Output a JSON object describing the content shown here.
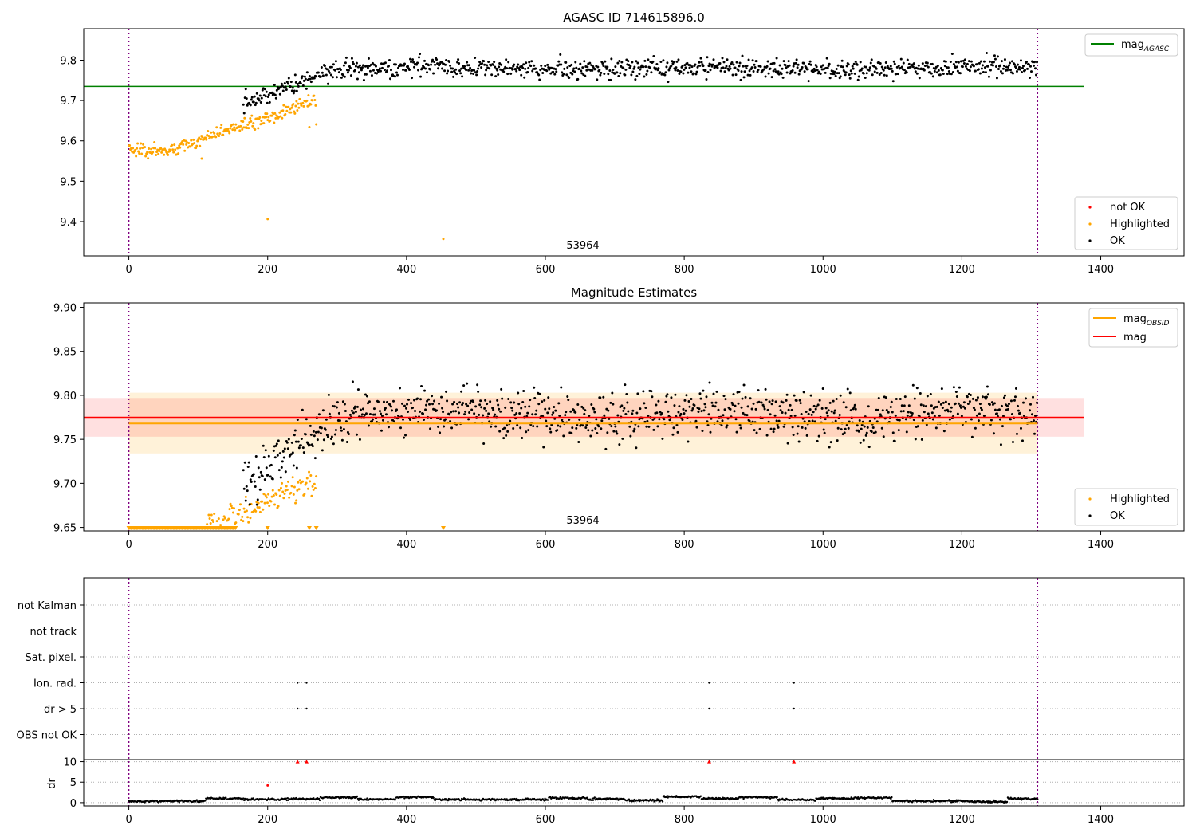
{
  "chart_data": [
    {
      "type": "scatter",
      "title": "AGASC ID 714615896.0",
      "xlabel": "",
      "ylabel": "",
      "xlim": [
        -65,
        1520
      ],
      "ylim": [
        9.315,
        9.878
      ],
      "xticks": [
        "0",
        "200",
        "400",
        "600",
        "800",
        "1000",
        "1200",
        "1400"
      ],
      "xtick_values": [
        0,
        200,
        400,
        600,
        800,
        1000,
        1200,
        1400
      ],
      "yticks": [
        "9.4",
        "9.5",
        "9.6",
        "9.7",
        "9.8"
      ],
      "ytick_values": [
        9.4,
        9.5,
        9.6,
        9.7,
        9.8
      ],
      "obsid_label": "53964",
      "obsid_label_x": 655,
      "obs_boundaries": [
        0,
        1309
      ],
      "hlines": [
        {
          "name": "mag_AGASC",
          "y": 9.735,
          "x": [
            -65,
            1376
          ],
          "color": "#008000"
        }
      ],
      "legend_lines": [
        {
          "label": "mag",
          "sub": "AGASC",
          "color": "#008000"
        }
      ],
      "legend_points": [
        {
          "label": "not OK",
          "color": "#ff0000"
        },
        {
          "label": "Highlighted",
          "color": "#ffa500"
        },
        {
          "label": "OK",
          "color": "#000000"
        }
      ],
      "outliers": [
        {
          "x": 200,
          "y": 9.406
        },
        {
          "x": 453,
          "y": 9.357
        },
        {
          "x": 105,
          "y": 9.556
        },
        {
          "x": 260,
          "y": 9.634
        },
        {
          "x": 270,
          "y": 9.641
        }
      ],
      "series_note": "OK: ~1000 points, rising 9.70→9.78 over x 165–300, then ~9.78 ± 0.015 to x 1309; Highlighted: ~240 points rising 9.58→9.72 over x 0–270"
    },
    {
      "type": "scatter",
      "title": "Magnitude Estimates",
      "xlabel": "",
      "ylabel": "",
      "xlim": [
        -65,
        1520
      ],
      "ylim": [
        9.646,
        9.905
      ],
      "xticks": [
        "0",
        "200",
        "400",
        "600",
        "800",
        "1000",
        "1200",
        "1400"
      ],
      "xtick_values": [
        0,
        200,
        400,
        600,
        800,
        1000,
        1200,
        1400
      ],
      "yticks": [
        "9.65",
        "9.70",
        "9.75",
        "9.80",
        "9.85",
        "9.90"
      ],
      "ytick_values": [
        9.65,
        9.7,
        9.75,
        9.8,
        9.85,
        9.9
      ],
      "obsid_label": "53964",
      "obsid_label_x": 655,
      "obs_boundaries": [
        0,
        1309
      ],
      "bands": [
        {
          "name": "mag_OBSID band",
          "y": [
            9.734,
            9.803
          ],
          "x": [
            0,
            1309
          ],
          "color": "#ffa500",
          "opacity": 0.15
        },
        {
          "name": "mag band",
          "y": [
            9.753,
            9.797
          ],
          "x": [
            -65,
            1376
          ],
          "color": "#ff0000",
          "opacity": 0.12
        }
      ],
      "hlines": [
        {
          "name": "mag_OBSID",
          "y": 9.768,
          "x": [
            0,
            1309
          ],
          "color": "#ffa500"
        },
        {
          "name": "mag",
          "y": 9.775,
          "x": [
            -65,
            1376
          ],
          "color": "#ff0000"
        }
      ],
      "legend_lines": [
        {
          "label": "mag",
          "sub": "OBSID",
          "color": "#ffa500"
        },
        {
          "label": "mag",
          "sub": "",
          "color": "#ff0000"
        }
      ],
      "legend_points": [
        {
          "label": "Highlighted",
          "color": "#ffa500"
        },
        {
          "label": "OK",
          "color": "#000000"
        }
      ],
      "floor_markers_note": "Highlighted values below 9.65 drawn as orange triangles on the bottom axis, x 0–155 and at x 200, 260, 270, 453"
    },
    {
      "type": "scatter",
      "title": "",
      "xlim": [
        -65,
        1520
      ],
      "xticks": [
        "0",
        "200",
        "400",
        "600",
        "800",
        "1000",
        "1200",
        "1400"
      ],
      "xtick_values": [
        0,
        200,
        400,
        600,
        800,
        1000,
        1200,
        1400
      ],
      "obs_boundaries": [
        0,
        1309
      ],
      "flag_rows": [
        "not Kalman",
        "not track",
        "Sat. pixel.",
        "Ion. rad.",
        "dr > 5",
        "OBS not OK"
      ],
      "flag_points": [
        {
          "row": "Ion. rad.",
          "x": [
            243,
            256,
            836,
            958
          ]
        },
        {
          "row": "dr > 5",
          "x": [
            243,
            256,
            836,
            958
          ]
        }
      ],
      "dr": {
        "ylabel": "dr",
        "yticks": [
          "0",
          "5",
          "10"
        ],
        "ytick_values": [
          0,
          5,
          10
        ],
        "ylim": [
          -0.8,
          10.5
        ],
        "clipped_points": {
          "x": [
            243,
            256,
            836,
            958
          ],
          "y": 10,
          "color": "#ff0000"
        },
        "highlight_point": {
          "x": 200,
          "y": 4.2,
          "color": "#ff0000"
        },
        "series_note": "dr values 0.2–1.5 in segments across x 0–1309"
      }
    }
  ]
}
